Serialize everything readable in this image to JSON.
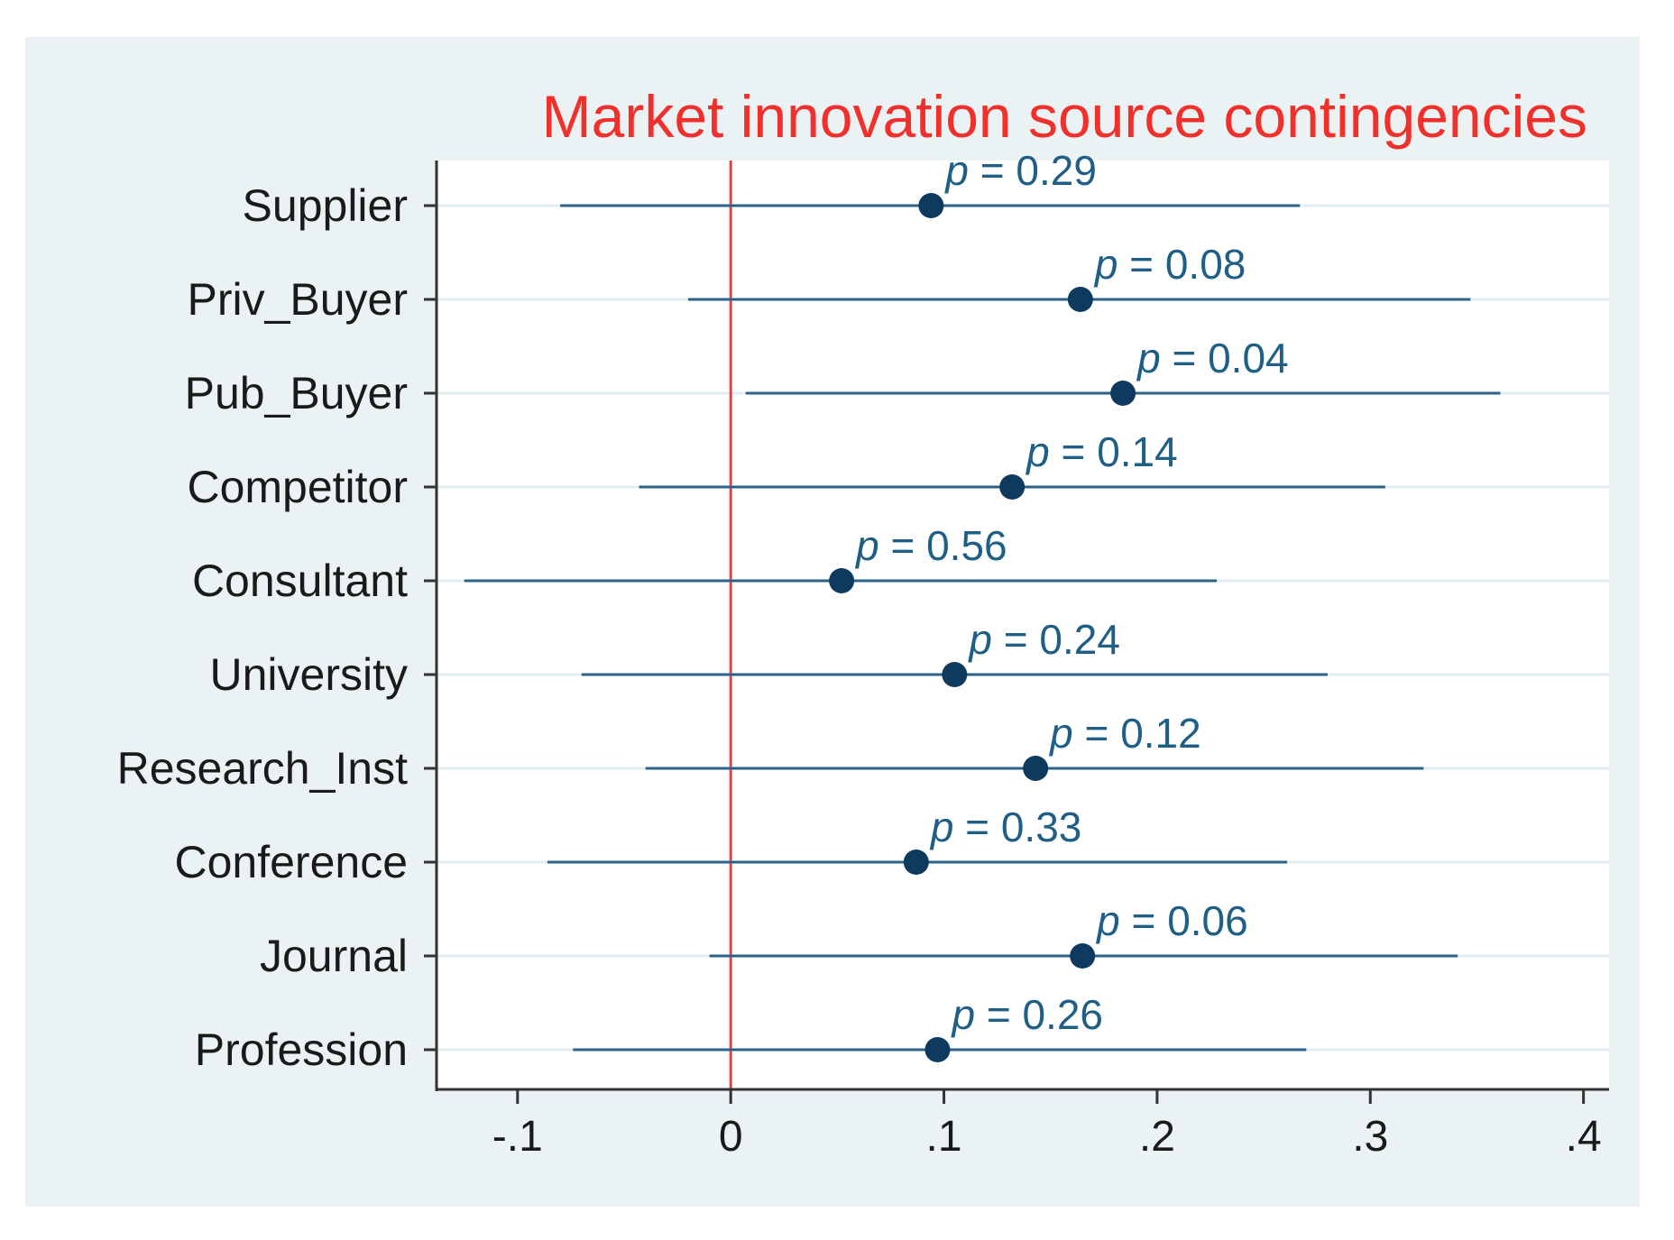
{
  "chart_data": {
    "type": "coefficient-plot",
    "title": "Market innovation source contingencies",
    "categories": [
      "Supplier",
      "Priv_Buyer",
      "Pub_Buyer",
      "Competitor",
      "Consultant",
      "University",
      "Research_Inst",
      "Conference",
      "Journal",
      "Profession"
    ],
    "estimates": [
      0.094,
      0.164,
      0.184,
      0.132,
      0.052,
      0.105,
      0.143,
      0.087,
      0.165,
      0.097
    ],
    "ci_lower": [
      -0.08,
      -0.02,
      0.007,
      -0.043,
      -0.125,
      -0.07,
      -0.04,
      -0.086,
      -0.01,
      -0.074
    ],
    "ci_upper": [
      0.267,
      0.347,
      0.361,
      0.307,
      0.228,
      0.28,
      0.325,
      0.261,
      0.341,
      0.27
    ],
    "p_values": [
      "0.29",
      "0.08",
      "0.04",
      "0.14",
      "0.56",
      "0.24",
      "0.12",
      "0.33",
      "0.06",
      "0.26"
    ],
    "p_prefix": "p",
    "p_equals": " = ",
    "x_ticks": [
      -0.1,
      0,
      0.1,
      0.2,
      0.3,
      0.4
    ],
    "x_tick_labels": [
      "-.1",
      "0",
      ".1",
      ".2",
      ".3",
      ".4"
    ],
    "xlim": [
      -0.138,
      0.412
    ],
    "reference_line": 0,
    "xlabel": "",
    "ylabel": "",
    "grid": true,
    "colors": {
      "marker": "#0e3a5f",
      "ci_line": "#2b6287",
      "p_label": "#1f5f86",
      "reference_line": "#e8404a",
      "title": "#f2302b",
      "gridline": "#e4eef0",
      "background": "#eaf2f3",
      "plot_background": "#ffffff"
    }
  }
}
